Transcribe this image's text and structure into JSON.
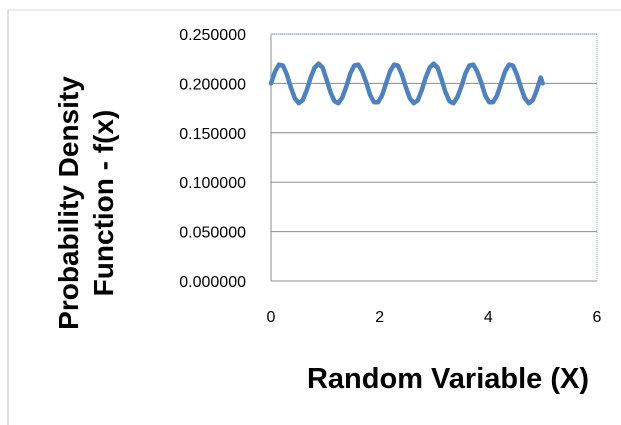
{
  "chart_data": {
    "type": "line",
    "title": "",
    "xlabel": "Random Variable (X)",
    "ylabel": [
      "Probability Density",
      "Function - f(x)"
    ],
    "xlim": [
      0,
      6
    ],
    "ylim": [
      0,
      0.25
    ],
    "x_ticks": [
      "0",
      "2",
      "4",
      "6"
    ],
    "y_ticks": [
      "0.000000",
      "0.050000",
      "0.100000",
      "0.150000",
      "0.200000",
      "0.250000"
    ],
    "grid": "horizontal",
    "legend": "none",
    "series": [
      {
        "color": "#4f81bd",
        "x": [
          0,
          0.073,
          0.146,
          0.219,
          0.292,
          0.365,
          0.438,
          0.511,
          0.584,
          0.657,
          0.73,
          0.803,
          0.876,
          0.949,
          1.022,
          1.095,
          1.168,
          1.241,
          1.314,
          1.387,
          1.46,
          1.533,
          1.606,
          1.679,
          1.752,
          1.825,
          1.898,
          1.971,
          2.044,
          2.117,
          2.19,
          2.263,
          2.336,
          2.409,
          2.482,
          2.555,
          2.628,
          2.701,
          2.774,
          2.847,
          2.92,
          2.993,
          3.066,
          3.139,
          3.212,
          3.285,
          3.358,
          3.431,
          3.504,
          3.577,
          3.65,
          3.723,
          3.796,
          3.869,
          3.942,
          4.015,
          4.088,
          4.161,
          4.234,
          4.307,
          4.38,
          4.453,
          4.526,
          4.599,
          4.672,
          4.745,
          4.818,
          4.891,
          4.964,
          5.0
        ],
        "y": [
          0.2,
          0.212,
          0.219,
          0.218,
          0.209,
          0.196,
          0.185,
          0.18,
          0.183,
          0.193,
          0.206,
          0.216,
          0.22,
          0.216,
          0.204,
          0.191,
          0.182,
          0.18,
          0.186,
          0.197,
          0.21,
          0.218,
          0.219,
          0.212,
          0.201,
          0.188,
          0.181,
          0.181,
          0.188,
          0.2,
          0.212,
          0.219,
          0.218,
          0.209,
          0.196,
          0.185,
          0.18,
          0.183,
          0.193,
          0.206,
          0.216,
          0.22,
          0.216,
          0.204,
          0.191,
          0.182,
          0.18,
          0.186,
          0.197,
          0.21,
          0.218,
          0.219,
          0.212,
          0.201,
          0.188,
          0.181,
          0.181,
          0.188,
          0.2,
          0.212,
          0.219,
          0.218,
          0.209,
          0.196,
          0.185,
          0.18,
          0.183,
          0.193,
          0.206,
          0.2
        ]
      }
    ]
  }
}
